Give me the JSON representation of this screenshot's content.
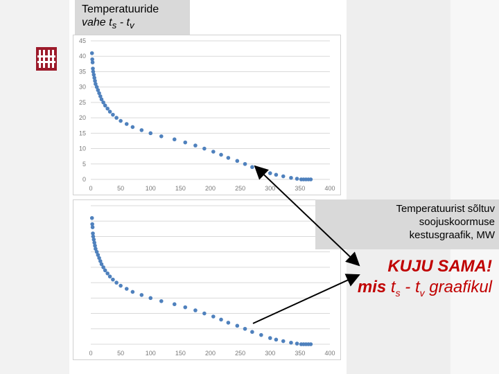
{
  "top_label": {
    "line1": "Temperatuuride",
    "line2_prefix": "vahe t",
    "sub1": "s",
    "mid": " - t",
    "sub2": "v"
  },
  "right_label": {
    "lines": [
      "Temperatuurist sõltuv",
      "soojuskoormuse",
      "kestusgraafik, MW"
    ]
  },
  "callout": {
    "line1": "KUJU SAMA!",
    "line2_bold": "mis",
    "line2_t": " t",
    "sub1": "s",
    "dash": " - t",
    "sub2": "v",
    "tail": " graafikul"
  },
  "colors": {
    "point": "#4f81bd",
    "grid": "#d9d9d9",
    "label_bg": "#d9d9d9",
    "callout": "#c00000"
  },
  "chart_data": [
    {
      "type": "scatter",
      "title": "",
      "xlabel": "",
      "ylabel": "",
      "xlim": [
        0,
        400
      ],
      "ylim": [
        0,
        45
      ],
      "xticks": [
        0,
        50,
        100,
        150,
        200,
        250,
        300,
        350,
        400
      ],
      "yticks": [
        0,
        5,
        10,
        15,
        20,
        25,
        30,
        35,
        40,
        45
      ],
      "grid": true,
      "series": [
        {
          "x": [
            2,
            2.5,
            3,
            3.5,
            4,
            5,
            6,
            7,
            8,
            10,
            12,
            14,
            16,
            18,
            21,
            24,
            28,
            32,
            37,
            43,
            50,
            60,
            70,
            85,
            100,
            118,
            140,
            158,
            175,
            190,
            205,
            218,
            230,
            245,
            258,
            270,
            285,
            300,
            310,
            322,
            335,
            345,
            352,
            356,
            360,
            364,
            368
          ],
          "y": [
            41,
            39,
            38,
            36,
            35,
            34,
            33,
            32,
            31,
            30,
            29,
            28,
            27,
            26,
            25,
            24,
            23,
            22,
            21,
            20,
            19,
            18,
            17,
            16,
            15,
            14,
            13,
            12,
            11,
            10,
            9,
            8,
            7,
            6,
            5,
            4,
            3,
            2,
            1.5,
            1,
            0.5,
            0.2,
            0,
            0,
            0,
            0,
            0
          ]
        }
      ]
    },
    {
      "type": "scatter",
      "title": "",
      "xlabel": "",
      "ylabel": "",
      "xlim": [
        0,
        400
      ],
      "ylim": [
        0,
        45
      ],
      "xticks": [
        0,
        50,
        100,
        150,
        200,
        250,
        300,
        350,
        400
      ],
      "grid": true,
      "series": [
        {
          "x": [
            2,
            2.5,
            3,
            3.5,
            4,
            5,
            6,
            7,
            8,
            10,
            12,
            14,
            16,
            18,
            21,
            24,
            28,
            32,
            37,
            43,
            50,
            60,
            70,
            85,
            100,
            118,
            140,
            158,
            175,
            190,
            205,
            218,
            230,
            245,
            258,
            270,
            285,
            300,
            310,
            322,
            335,
            345,
            352,
            356,
            360,
            364,
            368
          ],
          "y": [
            41,
            39,
            38,
            36,
            35,
            34,
            33,
            32,
            31,
            30,
            29,
            28,
            27,
            26,
            25,
            24,
            23,
            22,
            21,
            20,
            19,
            18,
            17,
            16,
            15,
            14,
            13,
            12,
            11,
            10,
            9,
            8,
            7,
            6,
            5,
            4,
            3,
            2,
            1.5,
            1,
            0.5,
            0.2,
            0,
            0,
            0,
            0,
            0
          ]
        }
      ]
    }
  ]
}
